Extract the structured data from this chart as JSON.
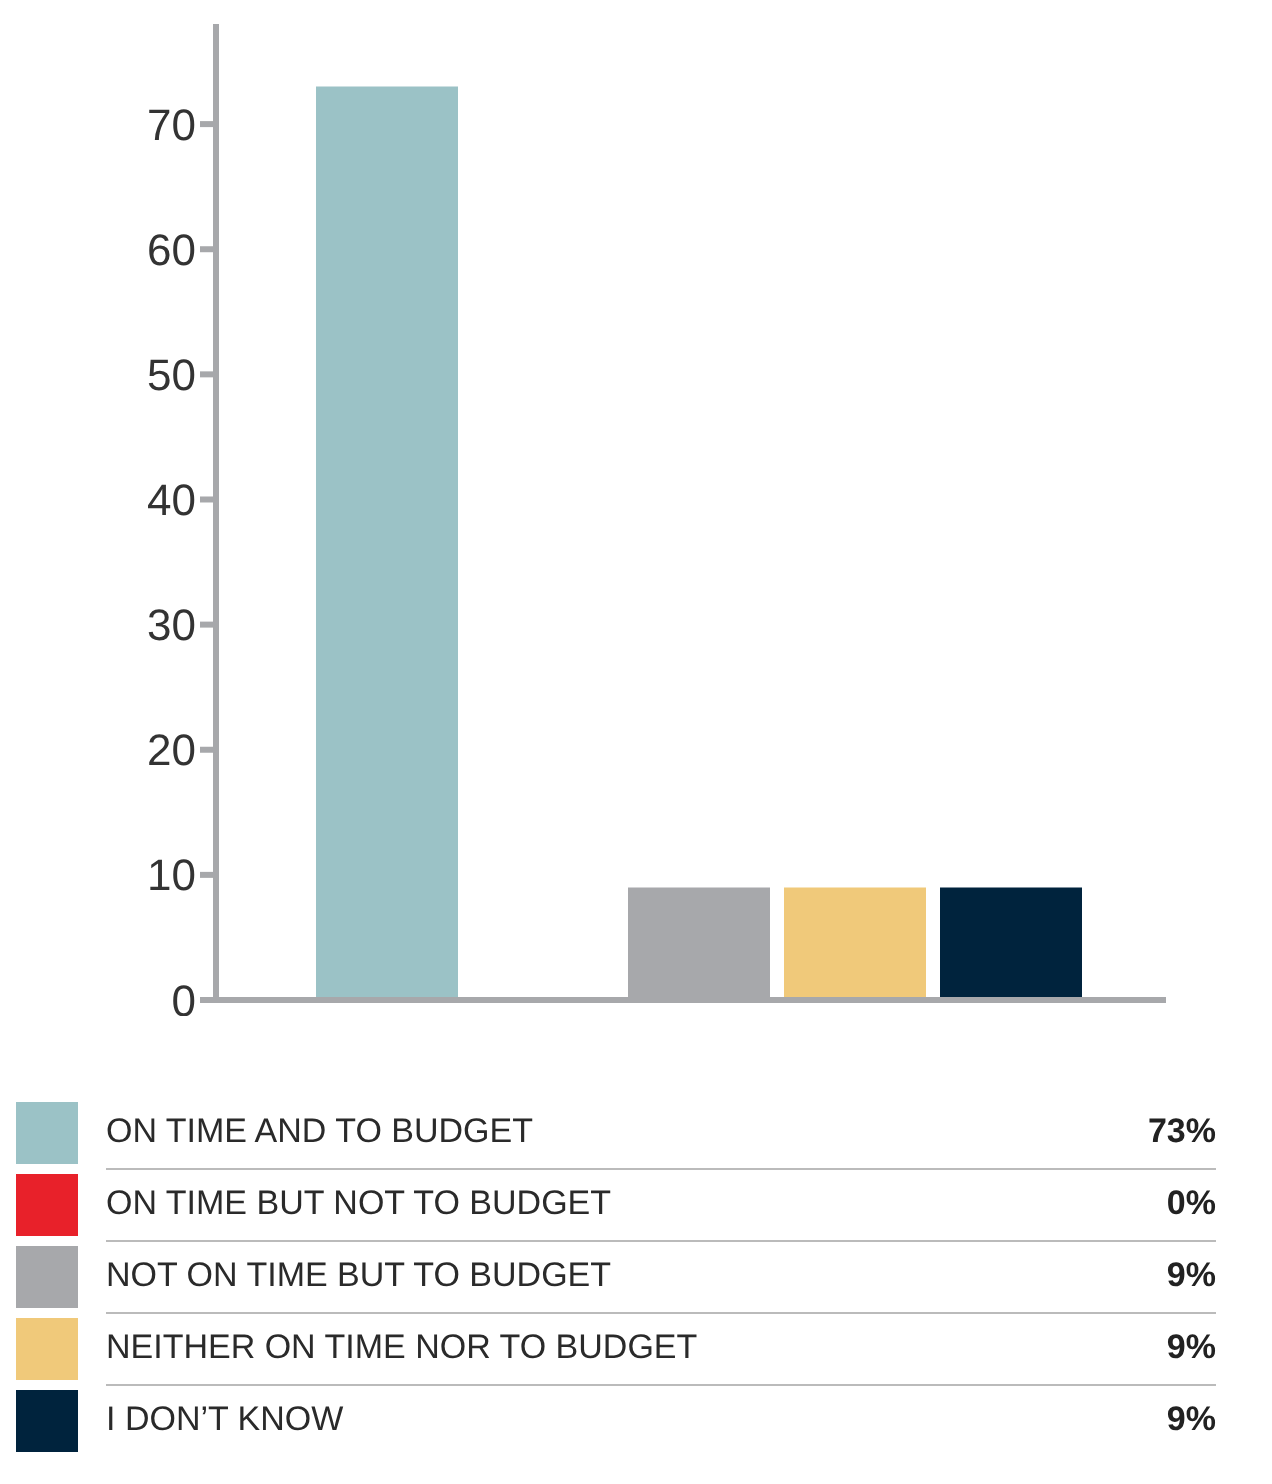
{
  "chart_data": {
    "type": "bar",
    "categories": [
      null
    ],
    "series": [
      {
        "name": "ON TIME AND TO BUDGET",
        "color": "#9bc2c6",
        "values": [
          73
        ]
      },
      {
        "name": "ON TIME BUT NOT TO BUDGET",
        "color": "#e8212a",
        "values": [
          0
        ]
      },
      {
        "name": "NOT ON TIME BUT TO BUDGET",
        "color": "#a7a8ab",
        "values": [
          9
        ]
      },
      {
        "name": "NEITHER ON TIME NOR TO BUDGET",
        "color": "#f0c97a",
        "values": [
          9
        ]
      },
      {
        "name": "I DON’T KNOW",
        "color": "#00233d",
        "values": [
          9
        ]
      }
    ],
    "annotations": [
      "73%",
      "0%",
      "9%",
      "9%",
      "9%"
    ],
    "ylim": [
      0,
      78
    ],
    "yticks": [
      0,
      10,
      20,
      30,
      40,
      50,
      60,
      70
    ],
    "tick_labels": "y",
    "legend": "bottom"
  }
}
